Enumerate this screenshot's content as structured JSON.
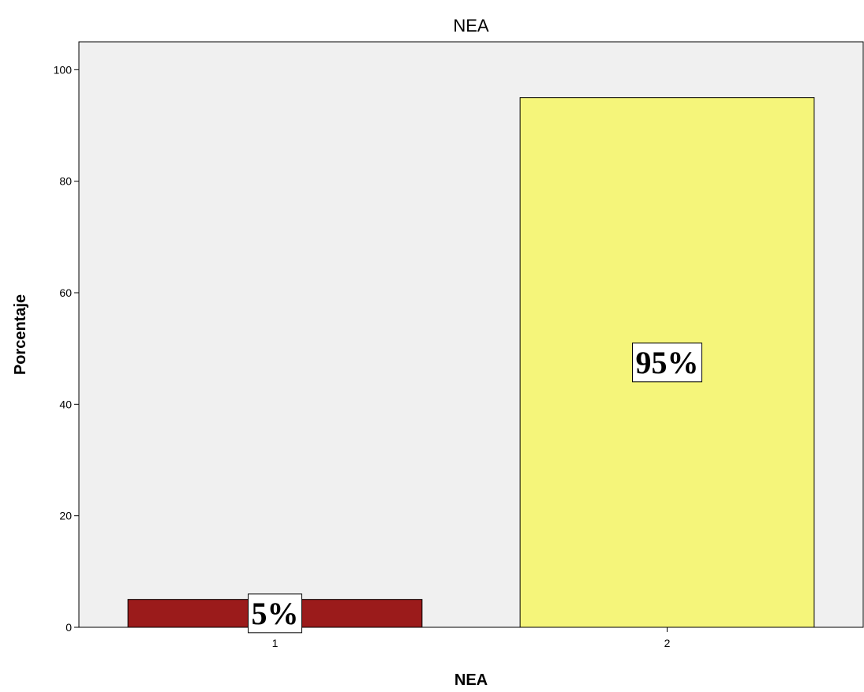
{
  "chart_data": {
    "type": "bar",
    "title": "NEA",
    "xlabel": "NEA",
    "ylabel": "Porcentaje",
    "categories": [
      "1",
      "2"
    ],
    "values": [
      5,
      95
    ],
    "data_labels": [
      "5%",
      "95%"
    ],
    "colors": [
      "#9B1B1B",
      "#F5F57A"
    ],
    "ylim": [
      0,
      105
    ],
    "yticks": [
      0,
      20,
      40,
      60,
      80,
      100
    ],
    "grid": false,
    "plot_background": "#F0F0F0"
  }
}
